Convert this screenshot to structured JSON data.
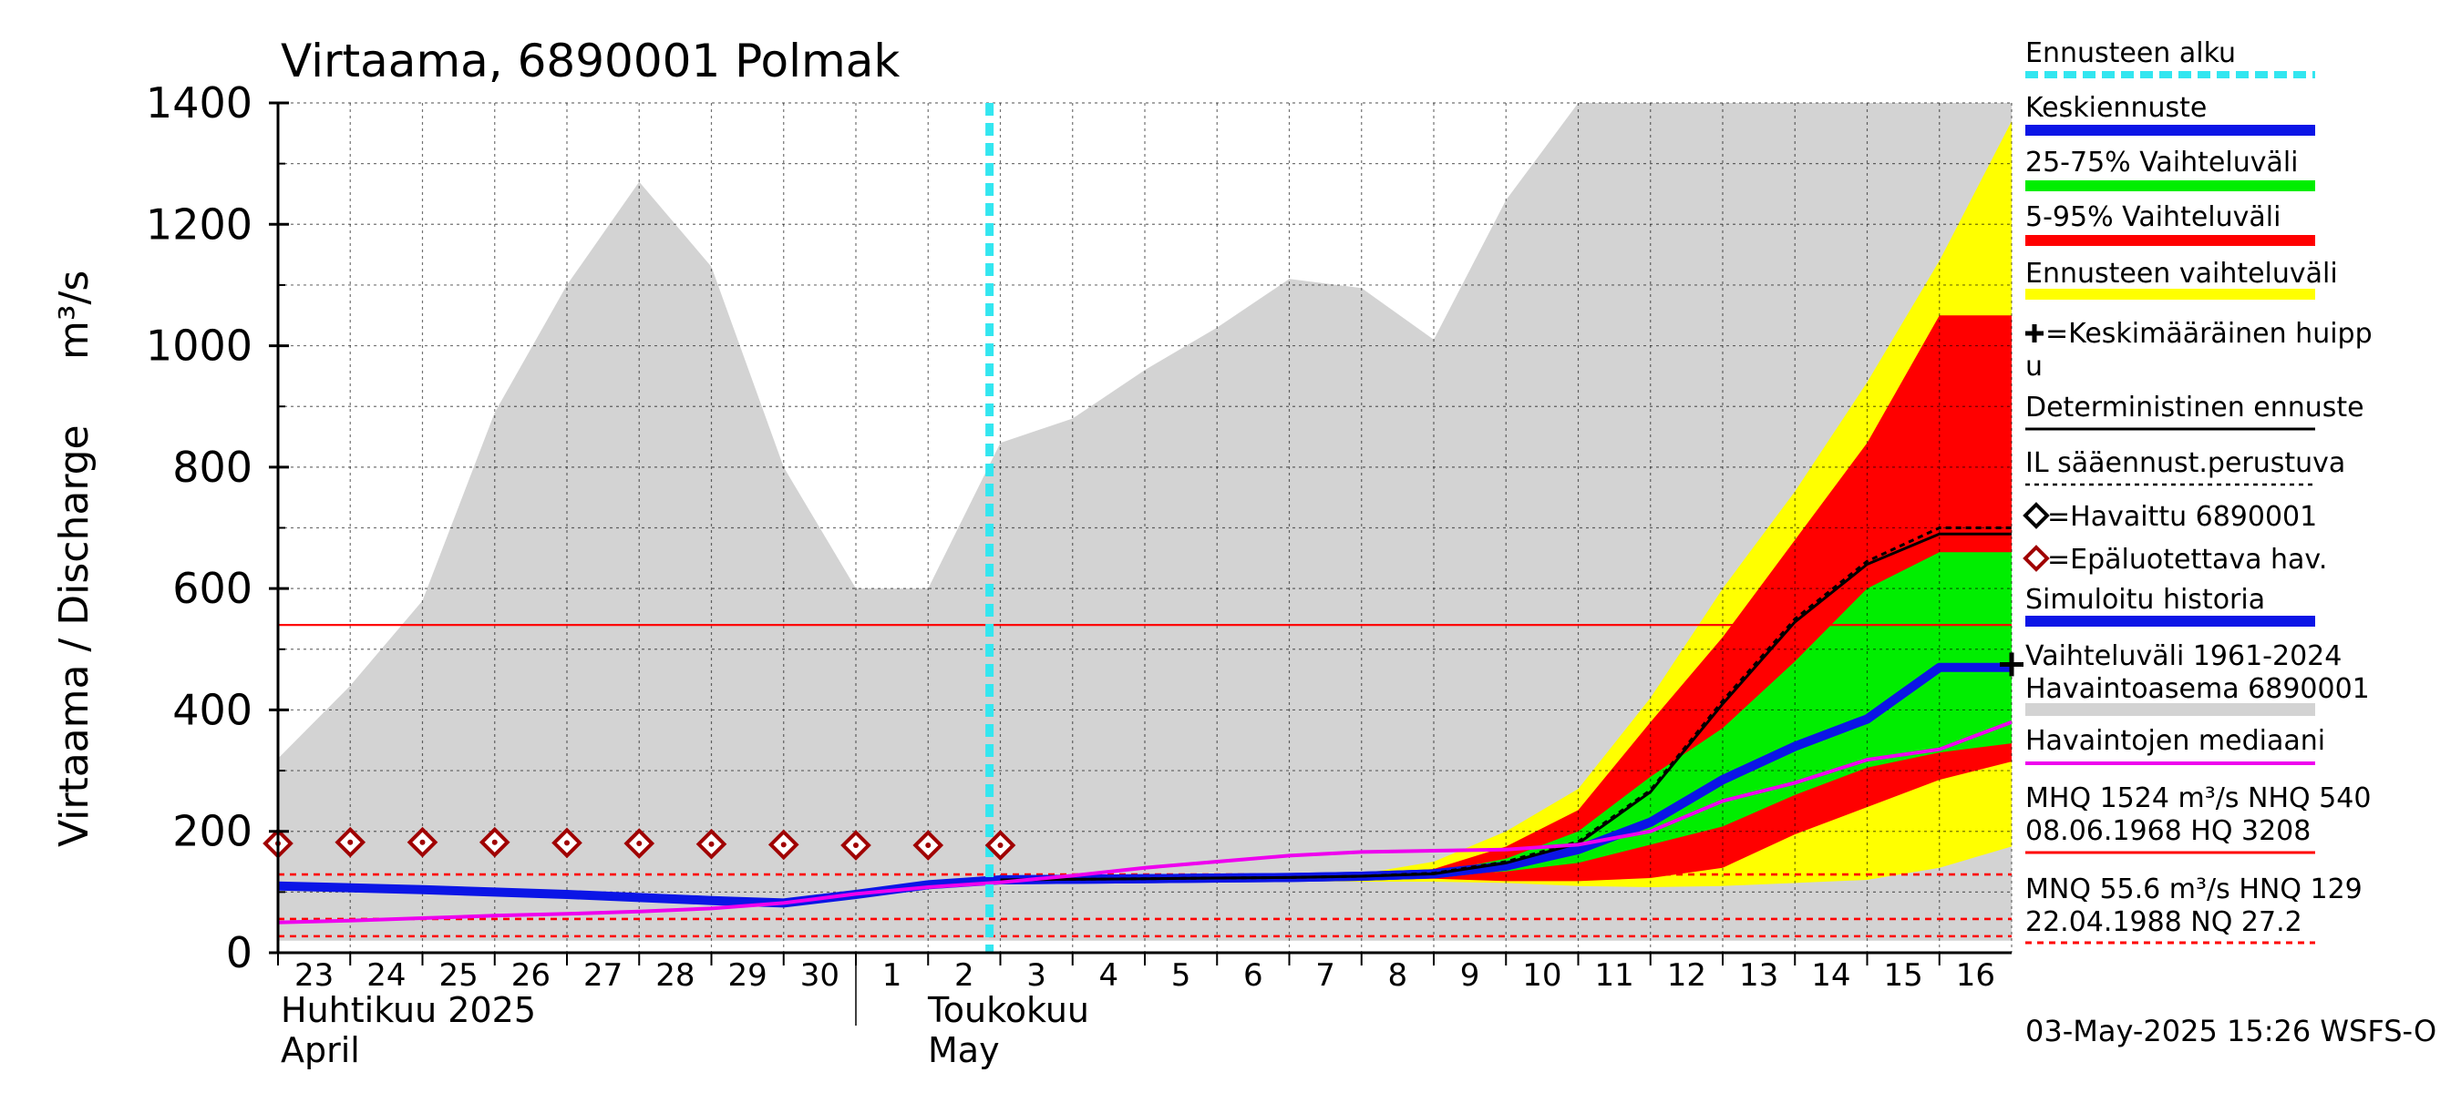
{
  "chart_data": {
    "type": "area",
    "title": "Virtaama, 6890001 Polmak",
    "ylabel_main": "Virtaama / Discharge",
    "ylabel_unit": "m³/s",
    "ylim": [
      0,
      1400
    ],
    "yticks": [
      0,
      200,
      400,
      600,
      800,
      1000,
      1200,
      1400
    ],
    "grid": true,
    "x_day_labels": [
      "23",
      "24",
      "25",
      "26",
      "27",
      "28",
      "29",
      "30",
      "1",
      "2",
      "3",
      "4",
      "5",
      "6",
      "7",
      "8",
      "9",
      "10",
      "11",
      "12",
      "13",
      "14",
      "15",
      "16"
    ],
    "x_month_labels": [
      {
        "fi": "Huhtikuu  2025",
        "en": "April"
      },
      {
        "fi": "Toukokuu",
        "en": "May"
      }
    ],
    "forecast_start_index": 10,
    "hline_red_solid": 540,
    "hlines_red_dashed": [
      129,
      55.6,
      27.2
    ],
    "history_range": {
      "name": "Vaihteluväli 1961-2024 Havaintoasema 6890001",
      "upper": [
        320,
        440,
        580,
        890,
        1100,
        1270,
        1130,
        800,
        600,
        600,
        840,
        880,
        960,
        1030,
        1110,
        1095,
        1010,
        1240,
        1480,
        1480,
        1480,
        1480,
        1480,
        1480,
        1480
      ],
      "lower": [
        20,
        20,
        20,
        20,
        20,
        20,
        20,
        20,
        20,
        20,
        20,
        20,
        20,
        20,
        20,
        20,
        20,
        20,
        20,
        20,
        20,
        20,
        20,
        20,
        20
      ]
    },
    "forecast_x": [
      10,
      11,
      12,
      13,
      14,
      15,
      16,
      17,
      18,
      19,
      20,
      21,
      22,
      23,
      24
    ],
    "ennuste_range": {
      "name": "Ennusteen vaihteluväli",
      "upper": [
        120,
        122,
        124,
        125,
        127,
        130,
        150,
        200,
        270,
        420,
        600,
        760,
        940,
        1140,
        1370
      ],
      "lower": [
        120,
        119,
        118,
        118,
        118,
        117,
        117,
        115,
        110,
        108,
        110,
        115,
        120,
        140,
        175
      ]
    },
    "p5_95": {
      "name": "5-95% Vaihteluväli",
      "upper": [
        120,
        121,
        122,
        124,
        126,
        129,
        138,
        175,
        235,
        380,
        520,
        680,
        840,
        1050,
        1050
      ],
      "lower": [
        120,
        119,
        119,
        119,
        119,
        119,
        122,
        118,
        118,
        123,
        140,
        195,
        240,
        285,
        315
      ]
    },
    "p25_75": {
      "name": "25-75% Vaihteluväli",
      "upper": [
        120,
        121,
        122,
        123,
        124,
        127,
        132,
        155,
        200,
        290,
        370,
        480,
        600,
        660,
        660
      ],
      "lower": [
        120,
        120,
        121,
        122,
        122,
        124,
        128,
        134,
        148,
        178,
        208,
        260,
        305,
        330,
        345
      ]
    },
    "keskiennuste": {
      "name": "Keskiennuste",
      "values": [
        120,
        121,
        122,
        123,
        124,
        126,
        130,
        143,
        170,
        215,
        285,
        340,
        385,
        470,
        470
      ]
    },
    "deterministic": {
      "name": "Deterministinen ennuste",
      "values": [
        120,
        121,
        122,
        123,
        124,
        126,
        130,
        148,
        180,
        265,
        410,
        545,
        640,
        690,
        690
      ]
    },
    "il_based": {
      "name": "IL sääennust.perustuva",
      "values": [
        120,
        121,
        122,
        123,
        124,
        126,
        131,
        150,
        183,
        268,
        415,
        550,
        645,
        700,
        700
      ]
    },
    "median_obs": {
      "name": "Havaintojen mediaani",
      "x": [
        0,
        1,
        2,
        3,
        4,
        5,
        6,
        7,
        8,
        9,
        10,
        11,
        12,
        13,
        14,
        15,
        16,
        17,
        18,
        19,
        20,
        21,
        22,
        23,
        24
      ],
      "values": [
        50,
        53,
        57,
        61,
        64,
        68,
        73,
        82,
        97,
        108,
        116,
        127,
        140,
        150,
        160,
        166,
        168,
        170,
        178,
        200,
        250,
        280,
        318,
        335,
        380
      ]
    },
    "simulated_history": {
      "name": "Simuloitu historia",
      "x": [
        0,
        1,
        2,
        3,
        4,
        5,
        6,
        7,
        8,
        9,
        10,
        11,
        12,
        13,
        14,
        15,
        16,
        17,
        18,
        19,
        20,
        21,
        22,
        23
      ],
      "values": [
        110,
        107,
        104,
        100,
        96,
        91,
        86,
        82,
        96,
        112,
        120,
        121,
        122,
        123,
        124,
        126,
        130,
        143,
        170,
        215,
        285,
        340,
        385,
        470
      ]
    },
    "unreliable_obs": {
      "name": "=Epäluotettava hav.",
      "x": [
        0,
        1,
        2,
        3,
        4,
        5,
        6,
        7,
        8,
        9,
        10
      ],
      "values": [
        180,
        182,
        182,
        182,
        181,
        180,
        179,
        178,
        177,
        177,
        177
      ]
    },
    "mean_peak": {
      "name": "=Keskimääräinen huippu",
      "x": 24,
      "value": 475
    }
  },
  "legend": {
    "items": [
      {
        "label": "Ennusteen alku",
        "color": "#33e6f0",
        "style": "dashed"
      },
      {
        "label": "Keskiennuste",
        "color": "#0b15e6",
        "style": "thick"
      },
      {
        "label": "25-75% Vaihteluväli",
        "color": "#00ee00",
        "style": "thick"
      },
      {
        "label": "5-95% Vaihteluväli",
        "color": "#ff0000",
        "style": "thick"
      },
      {
        "label": "Ennusteen vaihteluväli",
        "color": "#ffff00",
        "style": "thick"
      },
      {
        "label": "Deterministinen ennuste",
        "color": "#000000",
        "style": "line"
      },
      {
        "label": "IL sääennust.perustuva",
        "color": "#000000",
        "style": "dotted"
      },
      {
        "label": "=Havaittu 6890001",
        "color": "#000000",
        "style": "none"
      },
      {
        "label": "=Epäluotettava hav.",
        "color": "#a00000",
        "style": "none"
      },
      {
        "label": "Simuloitu historia",
        "color": "#0b15e6",
        "style": "thick"
      },
      {
        "label": "Havaintojen mediaani",
        "color": "#ee00ee",
        "style": "line"
      }
    ],
    "mean_peak_line1": "=Keskimääräinen huipp",
    "mean_peak_line2": "u",
    "range_line1": "Vaihteluväli 1961-2024",
    "range_line2": " Havaintoasema 6890001",
    "stats1_line1": "MHQ 1524 m³/s NHQ  540",
    "stats1_line2": "08.06.1968 HQ 3208",
    "stats2_line1": "MNQ 55.6 m³/s HNQ  129",
    "stats2_line2": "22.04.1988 NQ 27.2"
  },
  "colors": {
    "history_range": "#d3d3d3",
    "ennuste": "#ffff00",
    "p5_95": "#ff0000",
    "p25_75": "#00ee00",
    "keskiennuste": "#0b15e6",
    "median": "#ee00ee",
    "forecast_start": "#33e6f0",
    "unreliable": "#a00000",
    "reference": "#ff0000"
  },
  "timestamp": "03-May-2025 15:26 WSFS-O"
}
